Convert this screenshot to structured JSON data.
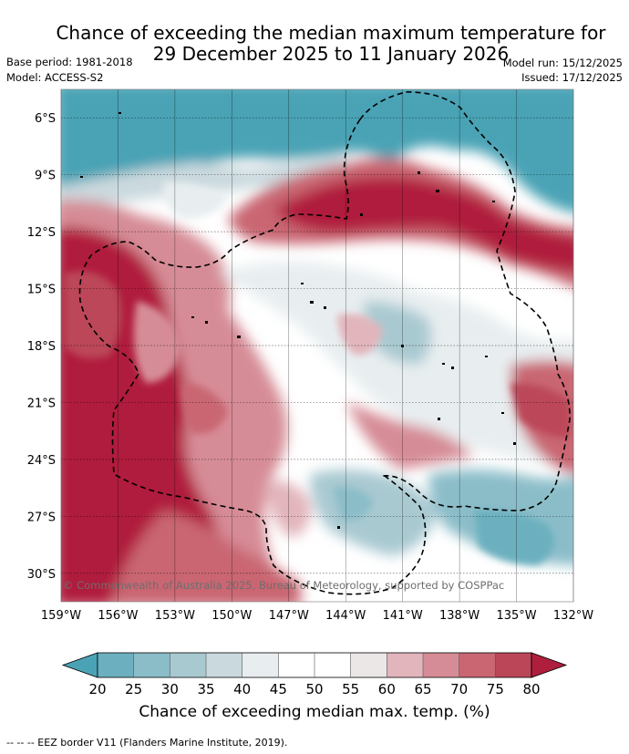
{
  "title": {
    "line1": "Chance of exceeding the median maximum temperature for",
    "line2": "29 December 2025 to 11 January 2026"
  },
  "meta": {
    "base_period": "Base period: 1981-2018",
    "model": "Model: ACCESS-S2",
    "model_run": "Model run: 15/12/2025",
    "issued": "Issued: 17/12/2025"
  },
  "map": {
    "lon_range": [
      -159,
      -132
    ],
    "lat_range": [
      -31.5,
      -4.5
    ],
    "lat_ticks": [
      "6°S",
      "9°S",
      "12°S",
      "15°S",
      "18°S",
      "21°S",
      "24°S",
      "27°S",
      "30°S"
    ],
    "lon_ticks": [
      "159°W",
      "156°W",
      "153°W",
      "150°W",
      "147°W",
      "144°W",
      "141°W",
      "138°W",
      "135°W",
      "132°W"
    ],
    "copyright": "© Commonwealth of Australia 2025, Bureau of Meteorology, supported by COSPPac",
    "colors": {
      "teal_dark": "#4aa3b5",
      "red_dark": "#b01e3e",
      "white": "#ffffff"
    }
  },
  "colorbar": {
    "ticks": [
      "20",
      "25",
      "30",
      "35",
      "40",
      "45",
      "50",
      "55",
      "60",
      "65",
      "70",
      "75",
      "80"
    ],
    "colors": [
      "#4aa3b5",
      "#6cb0bf",
      "#8bbdc9",
      "#a9c9d1",
      "#cad9de",
      "#e8eef0",
      "#ffffff",
      "#ffffff",
      "#ebe7e7",
      "#e2b5bc",
      "#d68c96",
      "#c96672",
      "#bb4658",
      "#b01e3e"
    ],
    "label": "Chance of exceeding median max. temp. (%)"
  },
  "eez_legend": "--  --  -- EEZ border V11 (Flanders Marine Institute, 2019)."
}
